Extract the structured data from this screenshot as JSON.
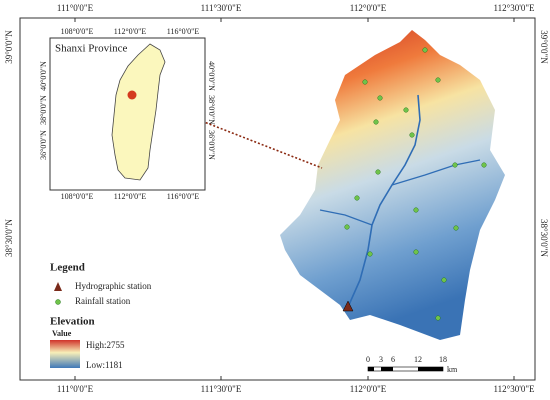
{
  "frame": {
    "lon_labels": [
      "111°0'0\"E",
      "111°30'0\"E",
      "112°0'0\"E",
      "112°30'0\"E"
    ],
    "lat_labels": [
      "39°0'0\"N",
      "38°30'0\"N"
    ]
  },
  "inset": {
    "title": "Shanxi Province",
    "lon_labels": [
      "108°0'0\"E",
      "112°0'0\"E",
      "116°0'0\"E"
    ],
    "lat_labels": [
      "40°0'0\"N",
      "38°0'0\"N",
      "36°0'0\"N"
    ]
  },
  "legend": {
    "title": "Legend",
    "items": [
      "Hydrographic station",
      "Rainfall station"
    ]
  },
  "elevation": {
    "title": "Elevation",
    "subtitle": "Value",
    "high": "High:2755",
    "low": "Low:1181"
  },
  "scale_bar": {
    "labels": [
      "0",
      "3",
      "6",
      "12",
      "18"
    ],
    "unit": "km"
  }
}
